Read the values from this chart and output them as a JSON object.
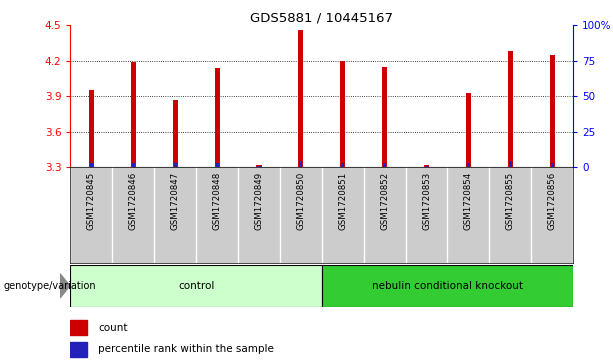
{
  "title": "GDS5881 / 10445167",
  "samples": [
    "GSM1720845",
    "GSM1720846",
    "GSM1720847",
    "GSM1720848",
    "GSM1720849",
    "GSM1720850",
    "GSM1720851",
    "GSM1720852",
    "GSM1720853",
    "GSM1720854",
    "GSM1720855",
    "GSM1720856"
  ],
  "count_values": [
    3.95,
    4.19,
    3.87,
    4.14,
    3.32,
    4.46,
    4.2,
    4.15,
    3.32,
    3.93,
    4.28,
    4.25
  ],
  "percentile_values": [
    3,
    3,
    3,
    3,
    1,
    4,
    3,
    3,
    1,
    3,
    4,
    3
  ],
  "ylim_left": [
    3.3,
    4.5
  ],
  "ylim_right": [
    0,
    100
  ],
  "yticks_left": [
    3.3,
    3.6,
    3.9,
    4.2,
    4.5
  ],
  "yticks_right": [
    0,
    25,
    50,
    75,
    100
  ],
  "ytick_labels_right": [
    "0",
    "25",
    "50",
    "75",
    "100%"
  ],
  "bar_color_red": "#cc0000",
  "bar_color_blue": "#2222bb",
  "bar_width": 0.12,
  "base_value": 3.3,
  "groups": [
    {
      "label": "control",
      "start": 0,
      "end": 6,
      "color": "#ccffcc"
    },
    {
      "label": "nebulin conditional knockout",
      "start": 6,
      "end": 12,
      "color": "#33cc33"
    }
  ],
  "group_row_label": "genotype/variation",
  "legend_items": [
    {
      "label": "count",
      "color": "#cc0000"
    },
    {
      "label": "percentile rank within the sample",
      "color": "#2222bb"
    }
  ],
  "tick_bg_color": "#cccccc",
  "grid_color": "black",
  "plot_bg": "white"
}
